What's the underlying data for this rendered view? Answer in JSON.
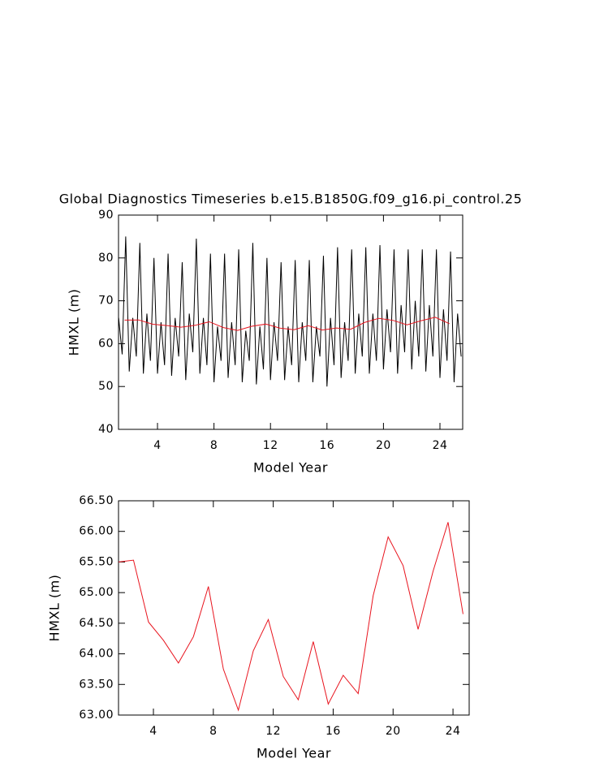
{
  "chart_data": [
    {
      "type": "line",
      "title": "Global Diagnostics Timeseries b.e15.B1850G.f09_g16.pi_control.25",
      "xlabel": "Model Year",
      "ylabel": "HMXL (m)",
      "xlim": [
        1.24,
        25.61
      ],
      "ylim": [
        40,
        90
      ],
      "xticks": [
        4,
        8,
        12,
        16,
        20,
        24
      ],
      "yticks": [
        40,
        50,
        60,
        70,
        80,
        90
      ],
      "series": [
        {
          "color": "#000000",
          "x": [
            1.25,
            1.5,
            1.75,
            2,
            2.25,
            2.5,
            2.75,
            3,
            3.25,
            3.5,
            3.75,
            4,
            4.25,
            4.5,
            4.75,
            5,
            5.25,
            5.5,
            5.75,
            6,
            6.25,
            6.5,
            6.75,
            7,
            7.25,
            7.5,
            7.75,
            8,
            8.25,
            8.5,
            8.75,
            9,
            9.25,
            9.5,
            9.75,
            10,
            10.25,
            10.5,
            10.75,
            11,
            11.25,
            11.5,
            11.75,
            12,
            12.25,
            12.5,
            12.75,
            13,
            13.25,
            13.5,
            13.75,
            14,
            14.25,
            14.5,
            14.75,
            15,
            15.25,
            15.5,
            15.75,
            16,
            16.25,
            16.5,
            16.75,
            17,
            17.25,
            17.5,
            17.75,
            18,
            18.25,
            18.5,
            18.75,
            19,
            19.25,
            19.5,
            19.75,
            20,
            20.25,
            20.5,
            20.75,
            21,
            21.25,
            21.5,
            21.75,
            22,
            22.25,
            22.5,
            22.75,
            23,
            23.25,
            23.5,
            23.75,
            24,
            24.25,
            24.5,
            24.75,
            25,
            25.25,
            25.5
          ],
          "values": [
            66,
            57.5,
            85,
            53.5,
            66,
            57,
            83.5,
            53,
            67,
            56,
            80,
            53,
            65,
            55,
            81,
            52.5,
            66,
            57,
            79,
            51.5,
            67,
            58,
            84.5,
            53,
            66,
            55,
            81,
            51,
            64,
            56,
            81,
            52,
            65,
            55,
            82,
            51,
            63,
            56,
            83.5,
            50.5,
            64,
            54,
            80,
            51.5,
            65,
            56,
            79,
            51.5,
            64,
            55,
            79.5,
            51,
            65,
            56,
            79.5,
            51,
            64,
            57,
            80.5,
            50,
            66,
            55,
            82.5,
            52,
            65,
            56,
            82,
            53,
            67,
            57,
            82.5,
            53,
            67,
            56,
            83,
            54,
            68,
            58,
            82,
            53,
            69,
            58,
            82,
            54,
            70,
            57,
            82,
            53.5,
            69,
            57,
            82,
            52,
            68,
            56,
            81.5,
            51,
            67,
            57
          ]
        },
        {
          "color": "#e8141e",
          "x": [
            1.67,
            2.67,
            3.67,
            4.67,
            5.67,
            6.67,
            7.67,
            8.67,
            9.67,
            10.67,
            11.67,
            12.67,
            13.67,
            14.67,
            15.67,
            16.67,
            17.67,
            18.67,
            19.67,
            20.67,
            21.67,
            22.67,
            23.67,
            24.67
          ],
          "values": [
            65.5,
            65.53,
            64.52,
            64.22,
            63.85,
            64.28,
            65.1,
            63.75,
            63.08,
            64.05,
            64.56,
            63.63,
            63.25,
            64.2,
            63.18,
            63.65,
            63.35,
            64.95,
            65.91,
            65.44,
            64.4,
            65.35,
            66.15,
            64.65
          ]
        }
      ]
    },
    {
      "type": "line",
      "xlabel": "Model Year",
      "ylabel": "HMXL (m)",
      "xlim": [
        1.67,
        25.08
      ],
      "ylim": [
        63,
        66.5
      ],
      "xticks": [
        4,
        8,
        12,
        16,
        20,
        24
      ],
      "yticks": [
        {
          "value": 63,
          "label": "63.00"
        },
        {
          "value": 63.5,
          "label": "63.50"
        },
        {
          "value": 64,
          "label": "64.00"
        },
        {
          "value": 64.5,
          "label": "64.50"
        },
        {
          "value": 65,
          "label": "65.00"
        },
        {
          "value": 65.5,
          "label": "65.50"
        },
        {
          "value": 66,
          "label": "66.00"
        },
        {
          "value": 66.5,
          "label": "66.50"
        }
      ],
      "series": [
        {
          "color": "#e8141e",
          "x": [
            1.67,
            2.67,
            3.67,
            4.67,
            5.67,
            6.67,
            7.67,
            8.67,
            9.67,
            10.67,
            11.67,
            12.67,
            13.67,
            14.67,
            15.67,
            16.67,
            17.67,
            18.67,
            19.67,
            20.67,
            21.67,
            22.67,
            23.67,
            24.67
          ],
          "values": [
            65.5,
            65.53,
            64.52,
            64.22,
            63.85,
            64.28,
            65.1,
            63.75,
            63.08,
            64.05,
            64.56,
            63.63,
            63.25,
            64.2,
            63.18,
            63.65,
            63.35,
            64.95,
            65.91,
            65.44,
            64.4,
            65.35,
            66.15,
            64.65
          ]
        }
      ]
    }
  ]
}
